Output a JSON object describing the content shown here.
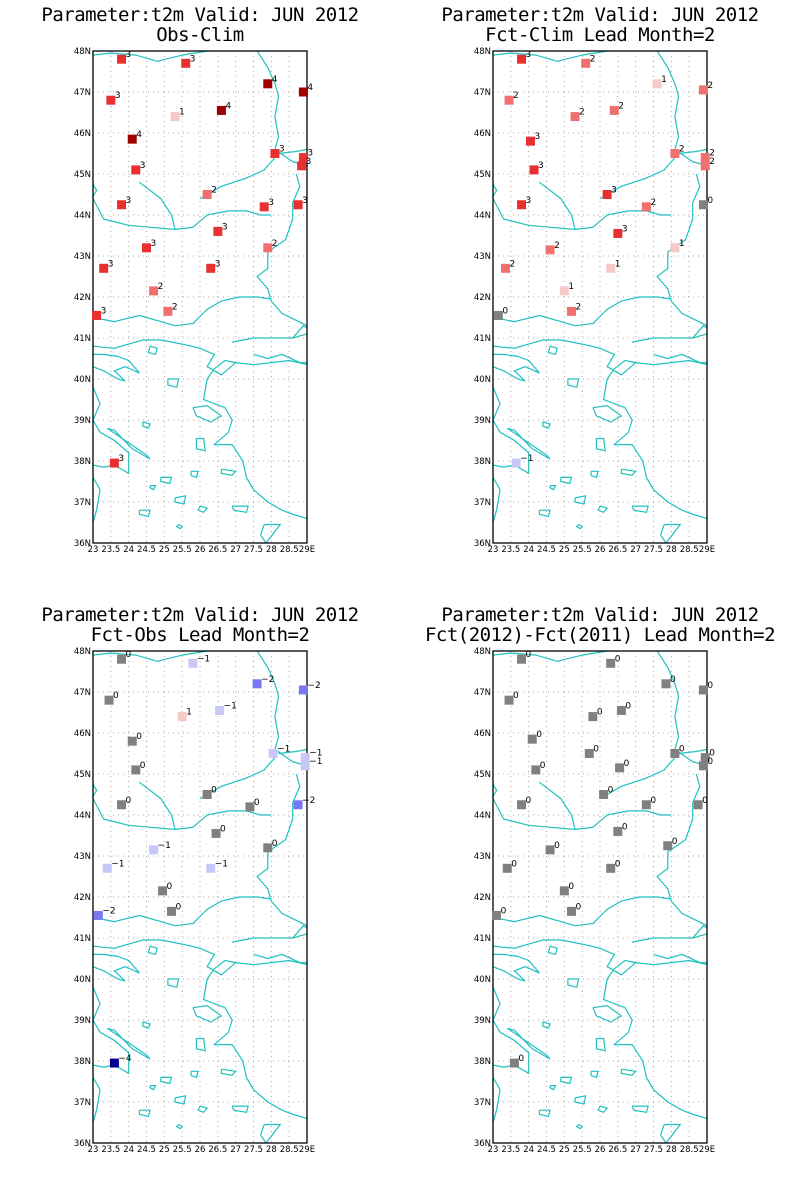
{
  "colors": {
    "coast": "#20c0c0",
    "grid": "#a8a8a8",
    "frame": "#000000",
    "zero": "#808080",
    "warm": {
      "1": "#f7c8c8",
      "2": "#f07070",
      "3": "#e83030",
      "4": "#a00000"
    },
    "cold": {
      "-1": "#c8c8f8",
      "-2": "#7878f0",
      "-4": "#000090"
    }
  },
  "axes": {
    "lat_labels": [
      "48N",
      "47N",
      "46N",
      "45N",
      "44N",
      "43N",
      "42N",
      "41N",
      "40N",
      "39N",
      "38N",
      "37N",
      "36N"
    ],
    "lon_labels": [
      "23",
      "23.5",
      "24",
      "24.5",
      "25",
      "25.5",
      "26",
      "26.5",
      "27",
      "27.5",
      "28",
      "28.5",
      "29E"
    ]
  },
  "panels": [
    {
      "title_line1": "Parameter:t2m Valid: JUN 2012",
      "title_line2": "Obs-Clim",
      "points": [
        {
          "lon": 23.8,
          "lat": 47.8,
          "v": 3
        },
        {
          "lon": 25.6,
          "lat": 47.7,
          "v": 3
        },
        {
          "lon": 27.9,
          "lat": 47.2,
          "v": 4
        },
        {
          "lon": 28.9,
          "lat": 47.0,
          "v": 4
        },
        {
          "lon": 23.5,
          "lat": 46.8,
          "v": 3
        },
        {
          "lon": 26.6,
          "lat": 46.55,
          "v": 4
        },
        {
          "lon": 25.3,
          "lat": 46.4,
          "v": 1
        },
        {
          "lon": 24.1,
          "lat": 45.85,
          "v": 4
        },
        {
          "lon": 28.1,
          "lat": 45.5,
          "v": 3
        },
        {
          "lon": 28.9,
          "lat": 45.4,
          "v": 3
        },
        {
          "lon": 28.85,
          "lat": 45.2,
          "v": 3
        },
        {
          "lon": 24.2,
          "lat": 45.1,
          "v": 3
        },
        {
          "lon": 26.2,
          "lat": 44.5,
          "v": 2
        },
        {
          "lon": 23.8,
          "lat": 44.25,
          "v": 3
        },
        {
          "lon": 27.8,
          "lat": 44.2,
          "v": 3
        },
        {
          "lon": 28.75,
          "lat": 44.25,
          "v": 3
        },
        {
          "lon": 26.5,
          "lat": 43.6,
          "v": 3
        },
        {
          "lon": 27.9,
          "lat": 43.2,
          "v": 2
        },
        {
          "lon": 24.5,
          "lat": 43.2,
          "v": 3
        },
        {
          "lon": 23.3,
          "lat": 42.7,
          "v": 3
        },
        {
          "lon": 26.3,
          "lat": 42.7,
          "v": 3
        },
        {
          "lon": 24.7,
          "lat": 42.15,
          "v": 2
        },
        {
          "lon": 25.1,
          "lat": 41.65,
          "v": 2
        },
        {
          "lon": 23.1,
          "lat": 41.55,
          "v": 3
        },
        {
          "lon": 23.6,
          "lat": 37.95,
          "v": 3
        }
      ]
    },
    {
      "title_line1": "Parameter:t2m Valid: JUN 2012",
      "title_line2": "Fct-Clim Lead Month=2",
      "points": [
        {
          "lon": 23.8,
          "lat": 47.8,
          "v": 3
        },
        {
          "lon": 25.6,
          "lat": 47.7,
          "v": 2
        },
        {
          "lon": 27.6,
          "lat": 47.2,
          "v": 1
        },
        {
          "lon": 28.9,
          "lat": 47.05,
          "v": 2
        },
        {
          "lon": 23.45,
          "lat": 46.8,
          "v": 2
        },
        {
          "lon": 26.4,
          "lat": 46.55,
          "v": 2
        },
        {
          "lon": 25.3,
          "lat": 46.4,
          "v": 2
        },
        {
          "lon": 24.05,
          "lat": 45.8,
          "v": 3
        },
        {
          "lon": 28.1,
          "lat": 45.5,
          "v": 2
        },
        {
          "lon": 28.95,
          "lat": 45.4,
          "v": 2
        },
        {
          "lon": 28.95,
          "lat": 45.2,
          "v": 2
        },
        {
          "lon": 24.15,
          "lat": 45.1,
          "v": 3
        },
        {
          "lon": 26.2,
          "lat": 44.5,
          "v": 3
        },
        {
          "lon": 23.8,
          "lat": 44.25,
          "v": 3
        },
        {
          "lon": 27.3,
          "lat": 44.2,
          "v": 2
        },
        {
          "lon": 28.9,
          "lat": 44.25,
          "v": 0
        },
        {
          "lon": 26.5,
          "lat": 43.55,
          "v": 3
        },
        {
          "lon": 28.1,
          "lat": 43.2,
          "v": 1
        },
        {
          "lon": 24.6,
          "lat": 43.15,
          "v": 2
        },
        {
          "lon": 23.35,
          "lat": 42.7,
          "v": 2
        },
        {
          "lon": 26.3,
          "lat": 42.7,
          "v": 1
        },
        {
          "lon": 25.0,
          "lat": 42.15,
          "v": 1
        },
        {
          "lon": 25.2,
          "lat": 41.65,
          "v": 2
        },
        {
          "lon": 23.15,
          "lat": 41.55,
          "v": 0
        },
        {
          "lon": 23.65,
          "lat": 37.95,
          "v": -1
        }
      ]
    },
    {
      "title_line1": "Parameter:t2m Valid: JUN 2012",
      "title_line2": "Fct-Obs Lead Month=2",
      "points": [
        {
          "lon": 23.8,
          "lat": 47.8,
          "v": 0
        },
        {
          "lon": 25.8,
          "lat": 47.7,
          "v": -1
        },
        {
          "lon": 27.6,
          "lat": 47.2,
          "v": -2
        },
        {
          "lon": 28.9,
          "lat": 47.05,
          "v": -2
        },
        {
          "lon": 23.45,
          "lat": 46.8,
          "v": 0
        },
        {
          "lon": 26.55,
          "lat": 46.55,
          "v": -1
        },
        {
          "lon": 25.5,
          "lat": 46.4,
          "v": 1
        },
        {
          "lon": 24.1,
          "lat": 45.8,
          "v": 0
        },
        {
          "lon": 28.05,
          "lat": 45.5,
          "v": -1
        },
        {
          "lon": 28.95,
          "lat": 45.4,
          "v": -1
        },
        {
          "lon": 28.95,
          "lat": 45.2,
          "v": -1
        },
        {
          "lon": 24.2,
          "lat": 45.1,
          "v": 0
        },
        {
          "lon": 26.2,
          "lat": 44.5,
          "v": 0
        },
        {
          "lon": 23.8,
          "lat": 44.25,
          "v": 0
        },
        {
          "lon": 27.4,
          "lat": 44.2,
          "v": 0
        },
        {
          "lon": 28.75,
          "lat": 44.25,
          "v": -2
        },
        {
          "lon": 26.45,
          "lat": 43.55,
          "v": 0
        },
        {
          "lon": 27.9,
          "lat": 43.2,
          "v": 0
        },
        {
          "lon": 24.7,
          "lat": 43.15,
          "v": -1
        },
        {
          "lon": 23.4,
          "lat": 42.7,
          "v": -1
        },
        {
          "lon": 26.3,
          "lat": 42.7,
          "v": -1
        },
        {
          "lon": 24.95,
          "lat": 42.15,
          "v": 0
        },
        {
          "lon": 25.2,
          "lat": 41.65,
          "v": 0
        },
        {
          "lon": 23.15,
          "lat": 41.55,
          "v": -2
        },
        {
          "lon": 23.6,
          "lat": 37.95,
          "v": -4
        }
      ]
    },
    {
      "title_line1": "Parameter:t2m Valid: JUN 2012",
      "title_line2": "Fct(2012)-Fct(2011) Lead Month=2",
      "points": [
        {
          "lon": 23.8,
          "lat": 47.8,
          "v": 0
        },
        {
          "lon": 26.3,
          "lat": 47.7,
          "v": 0
        },
        {
          "lon": 27.85,
          "lat": 47.2,
          "v": 0
        },
        {
          "lon": 28.9,
          "lat": 47.05,
          "v": 0
        },
        {
          "lon": 23.45,
          "lat": 46.8,
          "v": 0
        },
        {
          "lon": 26.6,
          "lat": 46.55,
          "v": 0
        },
        {
          "lon": 25.8,
          "lat": 46.4,
          "v": 0
        },
        {
          "lon": 24.1,
          "lat": 45.85,
          "v": 0
        },
        {
          "lon": 25.7,
          "lat": 45.5,
          "v": 0
        },
        {
          "lon": 28.1,
          "lat": 45.5,
          "v": 0
        },
        {
          "lon": 28.95,
          "lat": 45.4,
          "v": 0
        },
        {
          "lon": 28.9,
          "lat": 45.2,
          "v": 0
        },
        {
          "lon": 24.2,
          "lat": 45.1,
          "v": 0
        },
        {
          "lon": 26.55,
          "lat": 45.15,
          "v": 0
        },
        {
          "lon": 26.1,
          "lat": 44.5,
          "v": 0
        },
        {
          "lon": 23.8,
          "lat": 44.25,
          "v": 0
        },
        {
          "lon": 27.3,
          "lat": 44.25,
          "v": 0
        },
        {
          "lon": 28.75,
          "lat": 44.25,
          "v": 0
        },
        {
          "lon": 26.5,
          "lat": 43.6,
          "v": 0
        },
        {
          "lon": 27.9,
          "lat": 43.25,
          "v": 0
        },
        {
          "lon": 24.6,
          "lat": 43.15,
          "v": 0
        },
        {
          "lon": 23.4,
          "lat": 42.7,
          "v": 0
        },
        {
          "lon": 26.3,
          "lat": 42.7,
          "v": 0
        },
        {
          "lon": 25.0,
          "lat": 42.15,
          "v": 0
        },
        {
          "lon": 25.2,
          "lat": 41.65,
          "v": 0
        },
        {
          "lon": 23.1,
          "lat": 41.55,
          "v": 0
        },
        {
          "lon": 23.6,
          "lat": 37.95,
          "v": 0
        }
      ]
    }
  ]
}
